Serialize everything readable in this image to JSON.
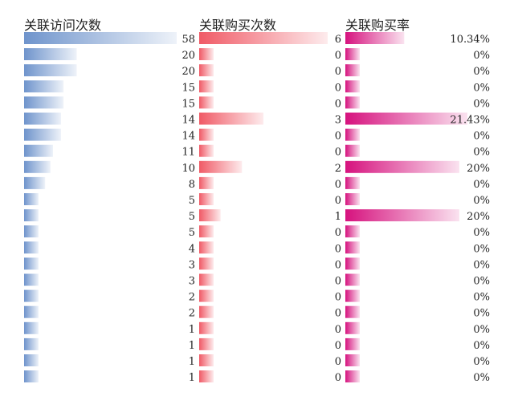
{
  "columns": [
    {
      "title": "关联访问次数"
    },
    {
      "title": "关联购买次数"
    },
    {
      "title": "关联购买率"
    }
  ],
  "colors": {
    "visits": "#6f94cc",
    "purchases": "#f05a66",
    "rate": "#d6127e"
  },
  "chart_data": {
    "type": "bar",
    "orientation": "horizontal",
    "series": [
      {
        "name": "关联访问次数",
        "values": [
          58,
          20,
          20,
          15,
          15,
          14,
          14,
          11,
          10,
          8,
          5,
          5,
          5,
          4,
          3,
          3,
          2,
          2,
          1,
          1,
          1,
          1
        ]
      },
      {
        "name": "关联购买次数",
        "values": [
          6,
          0,
          0,
          0,
          0,
          3,
          0,
          0,
          2,
          0,
          0,
          1,
          0,
          0,
          0,
          0,
          0,
          0,
          0,
          0,
          0,
          0
        ]
      },
      {
        "name": "关联购买率",
        "values": [
          10.34,
          0,
          0,
          0,
          0,
          21.43,
          0,
          0,
          20,
          0,
          0,
          20,
          0,
          0,
          0,
          0,
          0,
          0,
          0,
          0,
          0,
          0
        ],
        "labels": [
          "10.34%",
          "0%",
          "0%",
          "0%",
          "0%",
          "21.43%",
          "0%",
          "0%",
          "20%",
          "0%",
          "0%",
          "20%",
          "0%",
          "0%",
          "0%",
          "0%",
          "0%",
          "0%",
          "0%",
          "0%",
          "0%",
          "0%"
        ]
      }
    ],
    "xlim_visits": [
      0,
      58
    ],
    "xlim_purchases": [
      0,
      6
    ],
    "xlim_rate": [
      0,
      21.43
    ],
    "grid": false,
    "legend": "none"
  }
}
